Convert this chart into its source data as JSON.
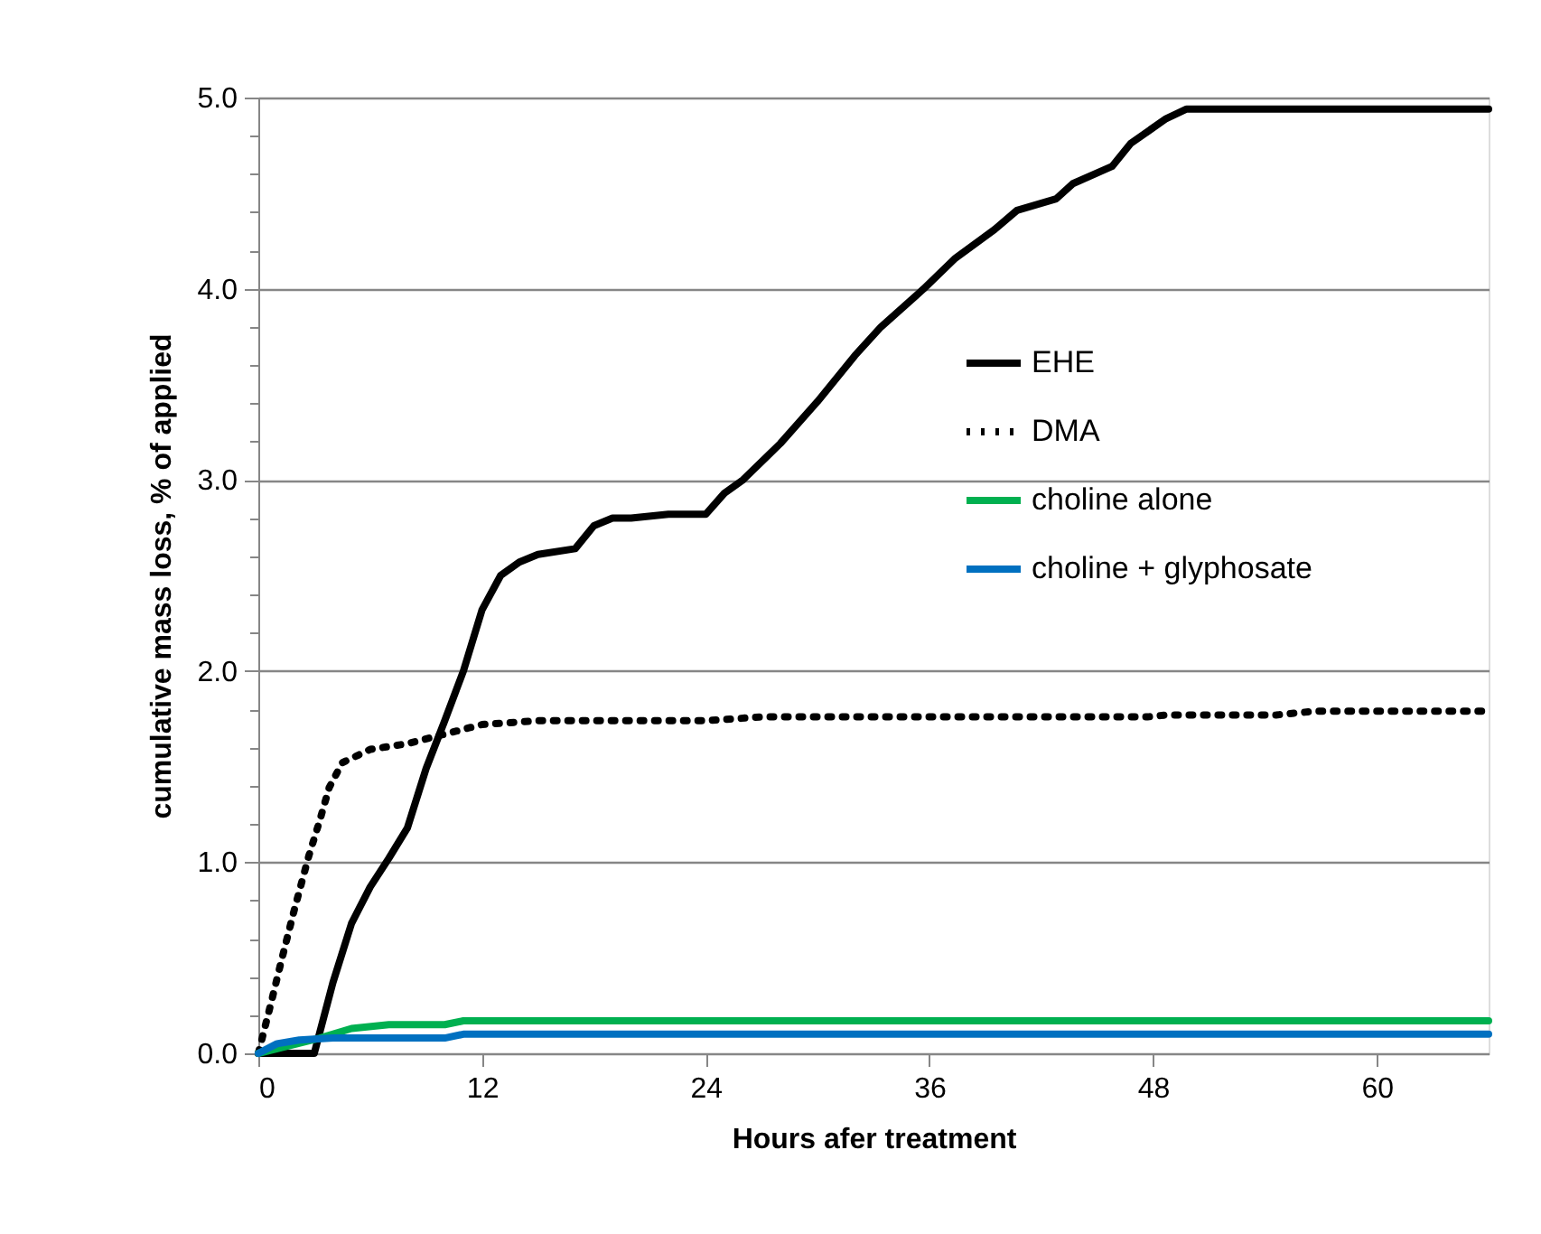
{
  "chart_data": {
    "type": "line",
    "xlabel": "Hours afer treatment",
    "ylabel": "cumulative mass loss, % of applied",
    "xlim": [
      0,
      66
    ],
    "ylim": [
      0,
      5
    ],
    "xticks": [
      0,
      12,
      24,
      36,
      48,
      60
    ],
    "yticks": [
      {
        "value": 0,
        "label": "0.0"
      },
      {
        "value": 0.2,
        "label": null
      },
      {
        "value": 0.4,
        "label": null
      },
      {
        "value": 0.6,
        "label": null
      },
      {
        "value": 0.8,
        "label": null
      },
      {
        "value": 1,
        "label": "1.0"
      },
      {
        "value": 1.2,
        "label": null
      },
      {
        "value": 1.4,
        "label": null
      },
      {
        "value": 1.6,
        "label": null
      },
      {
        "value": 1.8,
        "label": null
      },
      {
        "value": 2,
        "label": "2.0"
      },
      {
        "value": 2.2,
        "label": null
      },
      {
        "value": 2.4,
        "label": null
      },
      {
        "value": 2.6,
        "label": null
      },
      {
        "value": 2.8,
        "label": null
      },
      {
        "value": 3,
        "label": "3.0"
      },
      {
        "value": 3.2,
        "label": null
      },
      {
        "value": 3.4,
        "label": null
      },
      {
        "value": 3.6,
        "label": null
      },
      {
        "value": 3.8,
        "label": null
      },
      {
        "value": 4,
        "label": "4.0"
      },
      {
        "value": 4.2,
        "label": null
      },
      {
        "value": 4.4,
        "label": null
      },
      {
        "value": 4.6,
        "label": null
      },
      {
        "value": 4.8,
        "label": null
      },
      {
        "value": 5,
        "label": "5.0"
      }
    ],
    "grid": "y",
    "legend": "right",
    "marker": "none",
    "series": [
      {
        "name": "EHE",
        "color": "#000000",
        "line_style": "solid",
        "x": [
          0,
          3,
          4,
          5,
          6,
          7,
          8,
          9,
          10,
          11,
          12,
          13,
          14,
          15,
          17,
          18,
          19,
          20,
          22,
          24,
          25,
          26,
          28,
          30,
          32,
          33.4,
          35.7,
          37.4,
          39.5,
          40.7,
          42.8,
          43.7,
          45.8,
          46.8,
          48.7,
          49.8,
          66
        ],
        "values": [
          0,
          0,
          0.37,
          0.68,
          0.87,
          1.02,
          1.18,
          1.49,
          1.74,
          2.0,
          2.32,
          2.5,
          2.57,
          2.61,
          2.64,
          2.76,
          2.8,
          2.8,
          2.82,
          2.82,
          2.93,
          3.0,
          3.19,
          3.41,
          3.65,
          3.8,
          4.0,
          4.16,
          4.31,
          4.41,
          4.47,
          4.55,
          4.64,
          4.76,
          4.89,
          4.94,
          4.94
        ]
      },
      {
        "name": "DMA",
        "color": "#000000",
        "line_style": "dotted",
        "x": [
          0,
          0.7,
          1.2,
          1.9,
          2.7,
          3.3,
          3.8,
          4.5,
          6,
          8,
          10,
          12,
          15,
          24,
          27,
          47.7,
          48.7,
          54.6,
          56.7,
          66
        ],
        "values": [
          0,
          0.27,
          0.47,
          0.74,
          1.03,
          1.22,
          1.39,
          1.52,
          1.59,
          1.62,
          1.67,
          1.72,
          1.74,
          1.74,
          1.76,
          1.76,
          1.77,
          1.77,
          1.79,
          1.79
        ]
      },
      {
        "name": "choline alone",
        "color": "#00b050",
        "line_style": "solid",
        "x": [
          0,
          3.3,
          5,
          7,
          10,
          11,
          66
        ],
        "values": [
          0,
          0.08,
          0.13,
          0.15,
          0.15,
          0.17,
          0.17
        ]
      },
      {
        "name": "choline + glyphosate",
        "color": "#0070c0",
        "line_style": "solid",
        "x": [
          0,
          1,
          2.2,
          4,
          10,
          11,
          66
        ],
        "values": [
          0,
          0.05,
          0.07,
          0.08,
          0.08,
          0.1,
          0.1
        ]
      }
    ]
  }
}
